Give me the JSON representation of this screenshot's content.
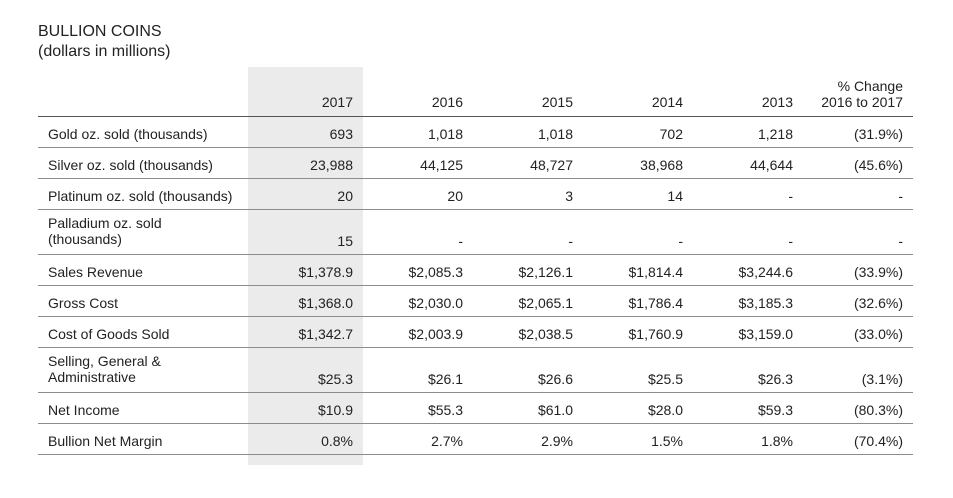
{
  "title": "BULLION COINS",
  "subtitle": "(dollars in millions)",
  "headers": [
    "",
    "2017",
    "2016",
    "2015",
    "2014",
    "2013",
    "% Change\n2016 to 2017"
  ],
  "rows": [
    {
      "label": "Gold oz. sold (thousands)",
      "values": [
        "693",
        "1,018",
        "1,018",
        "702",
        "1,218",
        "(31.9%)"
      ]
    },
    {
      "label": "Silver oz. sold (thousands)",
      "values": [
        "23,988",
        "44,125",
        "48,727",
        "38,968",
        "44,644",
        "(45.6%)"
      ]
    },
    {
      "label": "Platinum oz. sold (thousands)",
      "values": [
        "20",
        "20",
        "3",
        "14",
        "-",
        "-"
      ]
    },
    {
      "label": "Palladium oz. sold\n(thousands)",
      "values": [
        "15",
        "-",
        "-",
        "-",
        "-",
        "-"
      ]
    },
    {
      "label": "Sales Revenue",
      "values": [
        "$1,378.9",
        "$2,085.3",
        "$2,126.1",
        "$1,814.4",
        "$3,244.6",
        "(33.9%)"
      ]
    },
    {
      "label": "Gross Cost",
      "values": [
        "$1,368.0",
        "$2,030.0",
        "$2,065.1",
        "$1,786.4",
        "$3,185.3",
        "(32.6%)"
      ]
    },
    {
      "label": "Cost of Goods Sold",
      "values": [
        "$1,342.7",
        "$2,003.9",
        "$2,038.5",
        "$1,760.9",
        "$3,159.0",
        "(33.0%)"
      ]
    },
    {
      "label": "Selling, General &\nAdministrative",
      "values": [
        "$25.3",
        "$26.1",
        "$26.6",
        "$25.5",
        "$26.3",
        "(3.1%)"
      ]
    },
    {
      "label": "Net Income",
      "values": [
        "$10.9",
        "$55.3",
        "$61.0",
        "$28.0",
        "$59.3",
        "(80.3%)"
      ]
    },
    {
      "label": "Bullion Net Margin",
      "values": [
        "0.8%",
        "2.7%",
        "2.9%",
        "1.5%",
        "1.8%",
        "(70.4%)"
      ]
    }
  ],
  "highlight_color": "#ebebeb"
}
